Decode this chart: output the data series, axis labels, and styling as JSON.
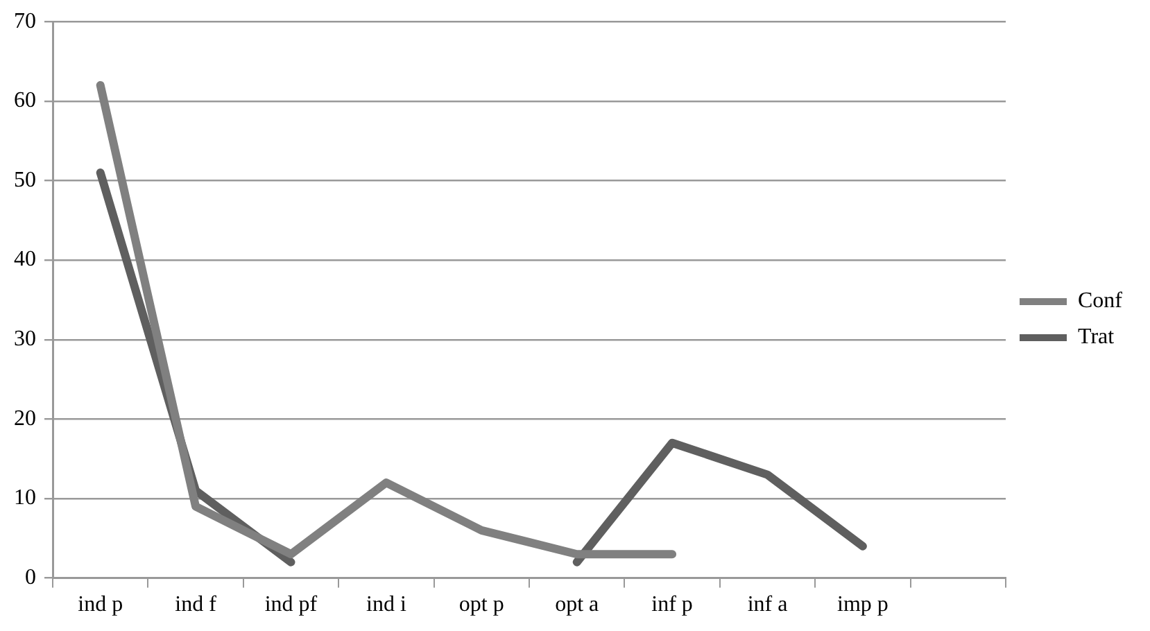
{
  "chart_data": {
    "type": "line",
    "categories": [
      "ind p",
      "ind f",
      "ind pf",
      "ind i",
      "opt p",
      "opt a",
      "inf p",
      "inf a",
      "imp p",
      null
    ],
    "series": [
      {
        "name": "Conf",
        "color": "#808080",
        "values": [
          62,
          9,
          3,
          12,
          6,
          3,
          3,
          null,
          null,
          null
        ]
      },
      {
        "name": "Trat",
        "color": "#5f5f5f",
        "values": [
          51,
          11,
          2,
          null,
          null,
          2,
          17,
          13,
          4,
          null
        ]
      }
    ],
    "ylim": [
      0,
      70
    ],
    "yticks": [
      0,
      10,
      20,
      30,
      40,
      50,
      60,
      70
    ],
    "grid": "y",
    "legend": "right",
    "marker": "none",
    "line_style": "solid"
  }
}
